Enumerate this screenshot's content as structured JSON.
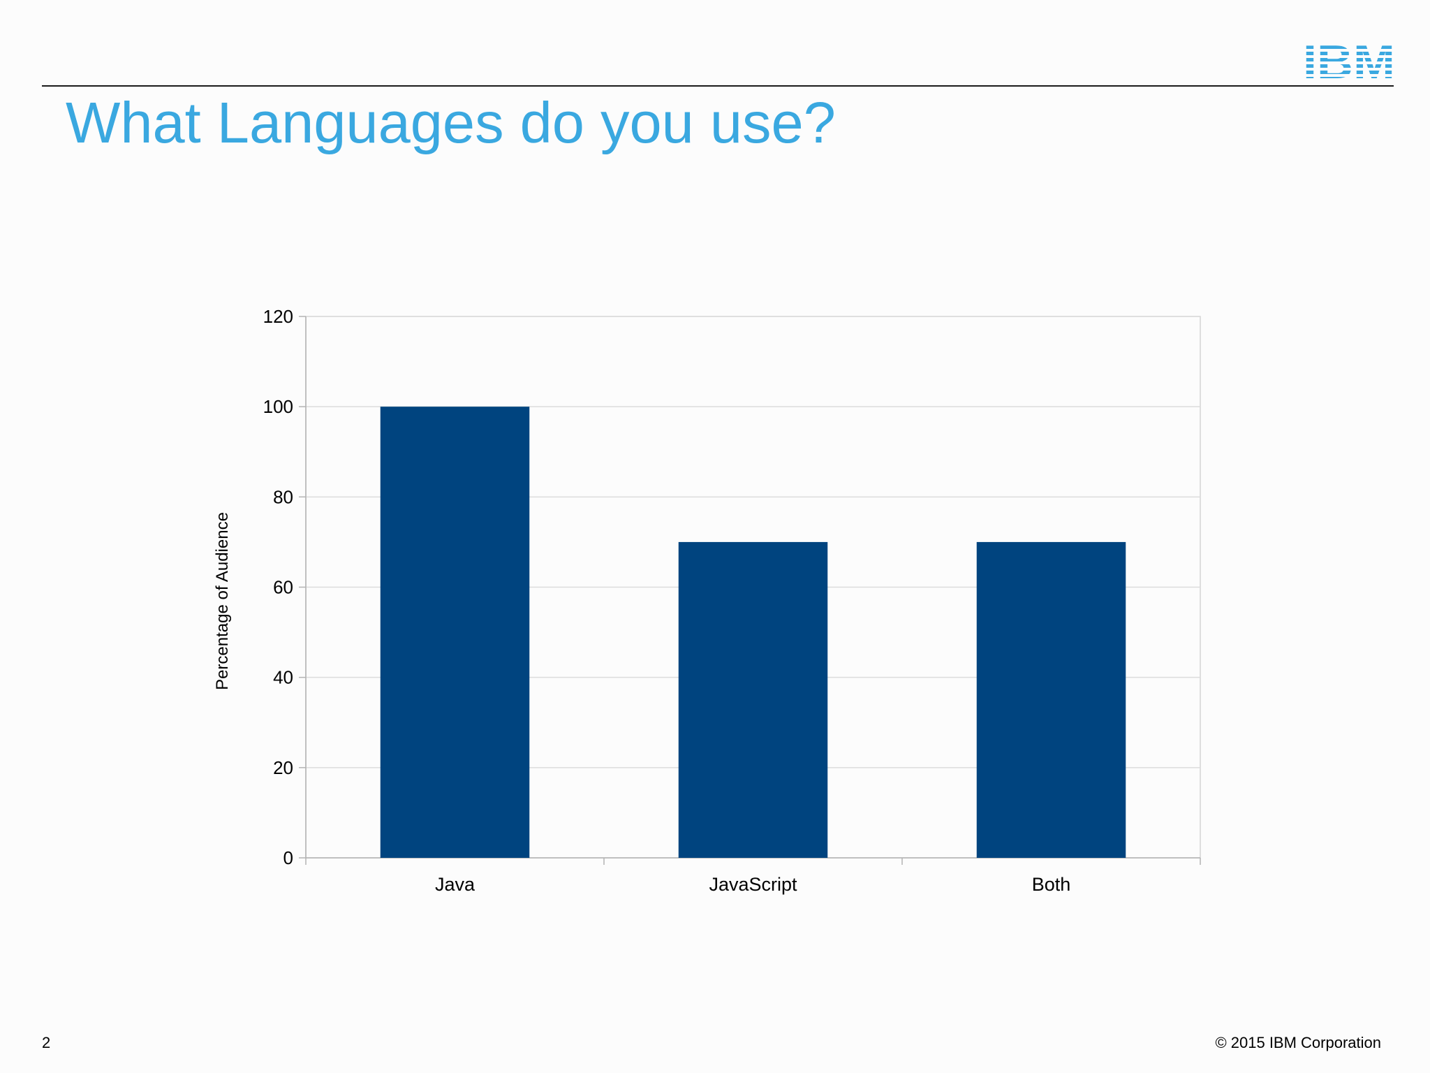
{
  "slide": {
    "title": "What Languages do you use?",
    "logo_text": "IBM",
    "page_number": "2",
    "copyright": "© 2015 IBM Corporation",
    "title_color": "#3aa8e0",
    "logo_color": "#3aa8e0"
  },
  "chart_data": {
    "type": "bar",
    "categories": [
      "Java",
      "JavaScript",
      "Both"
    ],
    "values": [
      100,
      70,
      70
    ],
    "ylabel": "Percentage of Audience",
    "xlabel": "",
    "ylim": [
      0,
      120
    ],
    "yticks": [
      "0",
      "20",
      "40",
      "60",
      "80",
      "100",
      "120"
    ],
    "grid": true,
    "legend": "none",
    "bar_color": "#00447f"
  }
}
